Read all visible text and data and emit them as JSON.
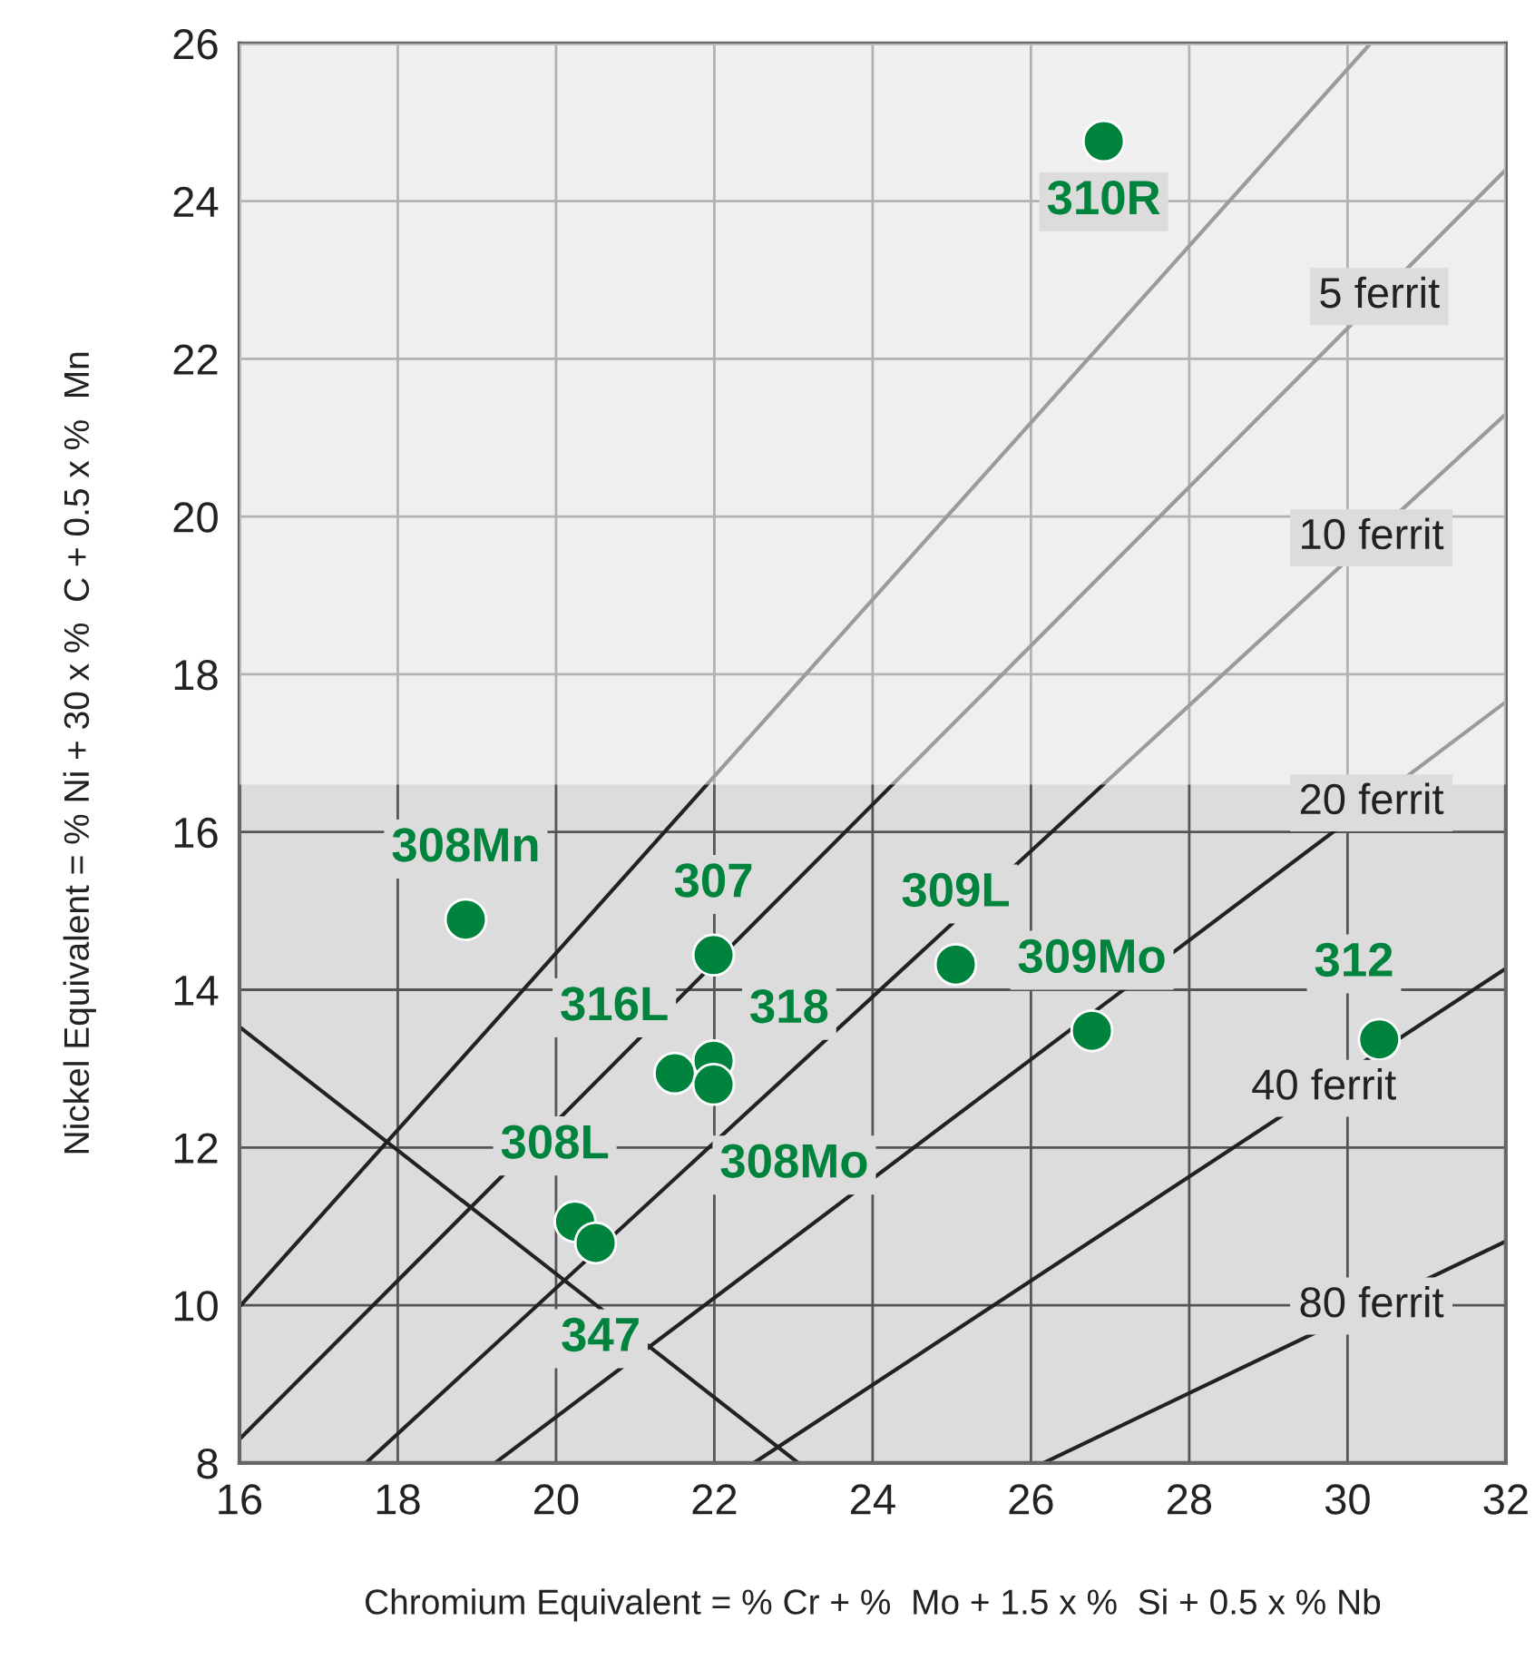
{
  "chart_data": {
    "type": "scatter",
    "xlabel": "Chromium Equivalent = % Cr + %  Mo + 1.5 x %  Si + 0.5 x % Nb",
    "ylabel": "Nickel Equivalent = % Ni + 30 x %  C + 0.5 x %  Mn",
    "xlim": [
      16,
      32
    ],
    "xticks": [
      16,
      18,
      20,
      22,
      24,
      26,
      28,
      30,
      32
    ],
    "ylim": [
      8,
      26
    ],
    "yticks": [
      8,
      10,
      12,
      14,
      16,
      18,
      20,
      22,
      24,
      26
    ],
    "grid": true,
    "series": [
      {
        "marker": "circle",
        "color": "#00843d",
        "x": [
          26.92,
          18.86,
          21.99,
          25.05,
          26.77,
          30.4,
          21.5,
          21.99,
          21.99,
          20.24,
          20.5
        ],
        "values": [
          24.76,
          14.89,
          14.44,
          14.32,
          13.48,
          13.37,
          12.94,
          13.1,
          12.8,
          11.06,
          10.79
        ]
      },
      {
        "type": "line",
        "color": "#222222",
        "x": [
          16,
          30.29
        ],
        "values": [
          9.98,
          26
        ]
      },
      {
        "type": "line",
        "color": "#222222",
        "x": [
          16,
          32
        ],
        "values": [
          8.3,
          24.4
        ]
      },
      {
        "type": "line",
        "color": "#222222",
        "x": [
          17.6,
          32
        ],
        "values": [
          8,
          21.3
        ]
      },
      {
        "type": "line",
        "color": "#222222",
        "x": [
          19.23,
          32
        ],
        "values": [
          8,
          17.65
        ]
      },
      {
        "type": "line",
        "color": "#222222",
        "x": [
          22.5,
          32
        ],
        "values": [
          8,
          14.27
        ]
      },
      {
        "type": "line",
        "color": "#222222",
        "x": [
          26.16,
          32
        ],
        "values": [
          8,
          10.81
        ]
      },
      {
        "type": "line",
        "color": "#222222",
        "x": [
          16,
          23.06
        ],
        "values": [
          13.53,
          8
        ]
      }
    ],
    "bands": [
      {
        "axis": "y",
        "from": 16.6,
        "to": 26,
        "color": "#ffffff"
      }
    ],
    "annotations": [
      {
        "text": "310R",
        "x": 26.92,
        "y": 24.76
      },
      {
        "text": "308Mn",
        "x": 18.86,
        "y": 14.89
      },
      {
        "text": "307",
        "x": 21.99,
        "y": 14.44
      },
      {
        "text": "309L",
        "x": 25.05,
        "y": 14.32
      },
      {
        "text": "309Mo",
        "x": 26.77,
        "y": 13.48
      },
      {
        "text": "312",
        "x": 30.4,
        "y": 13.37
      },
      {
        "text": "316L",
        "x": 21.5,
        "y": 12.94
      },
      {
        "text": "318",
        "x": 21.99,
        "y": 13.1
      },
      {
        "text": "308Mo",
        "x": 21.99,
        "y": 12.8
      },
      {
        "text": "308L",
        "x": 20.24,
        "y": 11.06
      },
      {
        "text": "347",
        "x": 20.5,
        "y": 10.79
      },
      {
        "text": "5 ferrit",
        "x": 30.4,
        "y": 22.79
      },
      {
        "text": "10 ferrit",
        "x": 30.3,
        "y": 19.73
      },
      {
        "text": "20 ferrit",
        "x": 30.3,
        "y": 16.37
      },
      {
        "text": "40 ferrit",
        "x": 29.7,
        "y": 12.75
      },
      {
        "text": "80 ferrit",
        "x": 30.3,
        "y": 9.99
      }
    ]
  }
}
